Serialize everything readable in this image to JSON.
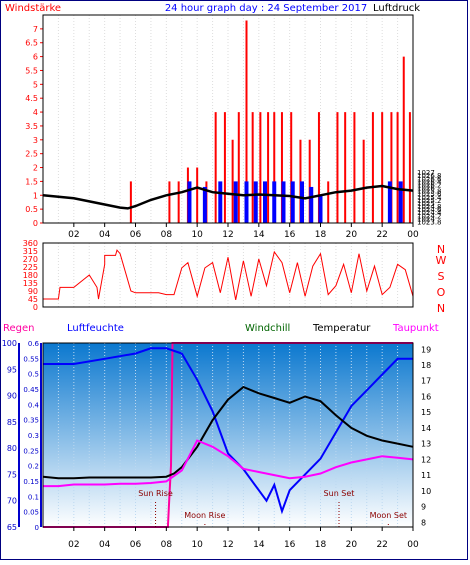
{
  "header": {
    "left_label": "Windstärke",
    "title": "24 hour graph day : 24 September 2017",
    "right_label": "Luftdruck"
  },
  "colors": {
    "wind": "#ff0000",
    "gust": "#0000ff",
    "pressure": "#000000",
    "humidity": "#0000ff",
    "dewpoint": "#ff00ff",
    "temperature": "#000000",
    "windchill": "#006400",
    "rain": "#ff00a0",
    "axis_blue": "#0000cc",
    "bg_top": "#0b78cf",
    "bg_bottom": "#ffffff"
  },
  "time_ticks": [
    "02",
    "04",
    "06",
    "08",
    "10",
    "12",
    "14",
    "16",
    "18",
    "20",
    "22",
    "00"
  ],
  "chart_data": [
    {
      "type": "line",
      "name": "wind-pressure",
      "ylim_left": [
        0,
        7.5
      ],
      "left_ticks": [
        "0",
        "0.5",
        "1",
        "1.5",
        "2",
        "2.5",
        "3",
        "3.5",
        "4",
        "4.5",
        "5",
        "5.5",
        "6",
        "6.5",
        "7"
      ],
      "ylim_right": [
        1023.7,
        1037.2
      ],
      "right_ticks": [
        "1023.8",
        "1024",
        "1024.2",
        "1024.4",
        "1024.6",
        "1024.8",
        "1025",
        "1025.2",
        "1025.4",
        "1025.6",
        "1025.8",
        "1026",
        "1026.2",
        "1026.4",
        "1026.6",
        "1026.8",
        "1027"
      ],
      "pressure": {
        "x": [
          0,
          1,
          2,
          3,
          4,
          5,
          5.5,
          6,
          7,
          8,
          9,
          10,
          11,
          12,
          13,
          14,
          15,
          16,
          17,
          18,
          19,
          20,
          21,
          22,
          23,
          24
        ],
        "values": [
          1025.5,
          1025.4,
          1025.3,
          1025.1,
          1024.9,
          1024.7,
          1024.65,
          1024.8,
          1025.2,
          1025.5,
          1025.7,
          1026.0,
          1025.7,
          1025.6,
          1025.5,
          1025.55,
          1025.5,
          1025.45,
          1025.3,
          1025.5,
          1025.7,
          1025.8,
          1026.0,
          1026.1,
          1025.9,
          1025.8
        ]
      },
      "wind_speed": {
        "x": [
          5.7,
          8.2,
          8.8,
          9.4,
          10.0,
          10.6,
          11.2,
          11.8,
          12.3,
          12.7,
          13.2,
          13.6,
          14.1,
          14.6,
          15.0,
          15.5,
          16.1,
          16.7,
          17.3,
          17.9,
          18.5,
          19.1,
          19.6,
          20.2,
          20.8,
          21.4,
          22.0,
          22.6,
          23.0,
          23.4,
          23.8
        ],
        "values": [
          1.5,
          1.5,
          1.5,
          2,
          2,
          1.5,
          4,
          4,
          3,
          4,
          7.3,
          4,
          4,
          4,
          4,
          4,
          4,
          3,
          3,
          4,
          1.5,
          4,
          4,
          4,
          3,
          4,
          4,
          4,
          4,
          6,
          4
        ]
      },
      "gust": {
        "x": [
          9.5,
          10.5,
          11.5,
          12.5,
          13.2,
          13.8,
          14.4,
          15.0,
          15.6,
          16.2,
          16.8,
          17.4,
          18.0,
          22.5,
          23.2
        ],
        "values": [
          1.5,
          1.3,
          1.5,
          1.5,
          1.5,
          1.5,
          1.5,
          1.5,
          1.5,
          1.5,
          1.5,
          1.3,
          1.0,
          1.5,
          1.5
        ]
      }
    },
    {
      "type": "line",
      "name": "wind-direction",
      "ylim": [
        0,
        360
      ],
      "left_ticks": [
        "0",
        "45",
        "90",
        "135",
        "180",
        "225",
        "270",
        "315",
        "360"
      ],
      "compass": [
        "N",
        "W",
        "S",
        "O",
        "N"
      ],
      "x": [
        0,
        1,
        1.1,
        2,
        3,
        3.5,
        3.6,
        4,
        4,
        4.7,
        4.8,
        5,
        5.7,
        6,
        6.5,
        7,
        7.5,
        8,
        8.5,
        9,
        9.4,
        10,
        10.5,
        11,
        11.5,
        12,
        12.5,
        13,
        13.5,
        14,
        14.5,
        15,
        15.5,
        16,
        16.5,
        17,
        17.5,
        18,
        18.5,
        19,
        19.5,
        20,
        20.5,
        21,
        21.5,
        22,
        22.5,
        23,
        23.5,
        24
      ],
      "values": [
        45,
        45,
        110,
        110,
        180,
        110,
        45,
        240,
        290,
        290,
        320,
        300,
        90,
        80,
        80,
        80,
        80,
        70,
        70,
        220,
        250,
        60,
        220,
        250,
        80,
        280,
        40,
        260,
        60,
        270,
        120,
        310,
        250,
        80,
        250,
        60,
        230,
        300,
        70,
        120,
        240,
        80,
        300,
        90,
        230,
        70,
        110,
        240,
        210,
        60
      ]
    },
    {
      "type": "line",
      "name": "temperature-humidity",
      "legend": [
        "Regen",
        "Luftfeuchte",
        "Windchill",
        "Temperatur",
        "Taupunkt"
      ],
      "ylim_humidity": [
        65,
        100
      ],
      "humidity_ticks": [
        "65",
        "70",
        "75",
        "80",
        "85",
        "90",
        "95",
        "100"
      ],
      "ylim_rain": [
        0,
        0.6
      ],
      "rain_ticks": [
        "0",
        "0.05",
        "0.1",
        "0.15",
        "0.2",
        "0.25",
        "0.3",
        "0.35",
        "0.4",
        "0.45",
        "0.5",
        "0.55",
        "0.6"
      ],
      "ylim_temp": [
        7.7,
        19.4
      ],
      "temp_ticks": [
        "8",
        "9",
        "10",
        "11",
        "12",
        "13",
        "14",
        "15",
        "16",
        "17",
        "18",
        "19"
      ],
      "humidity": {
        "x": [
          0,
          2,
          4,
          6,
          7,
          8,
          9,
          10,
          11,
          12,
          13,
          14,
          14.5,
          15,
          15.5,
          16,
          17,
          18,
          19,
          20,
          21,
          22,
          23,
          24
        ],
        "values": [
          96,
          96,
          97,
          98,
          99,
          99,
          98,
          93,
          87,
          79,
          76,
          72,
          70,
          73,
          68,
          72,
          75,
          78,
          83,
          88,
          91,
          94,
          97,
          97
        ]
      },
      "temperature": {
        "x": [
          0,
          1,
          2,
          3,
          4,
          5,
          6,
          7,
          8,
          8.5,
          9,
          10,
          11,
          12,
          13,
          14,
          15,
          16,
          17,
          18,
          19,
          20,
          21,
          22,
          23,
          24
        ],
        "values": [
          10.9,
          10.8,
          10.8,
          10.85,
          10.85,
          10.85,
          10.85,
          10.85,
          10.9,
          11.1,
          11.5,
          12.8,
          14.5,
          15.8,
          16.6,
          16.2,
          15.9,
          15.6,
          16.0,
          15.7,
          14.8,
          14.0,
          13.5,
          13.2,
          13.0,
          12.8
        ]
      },
      "dewpoint": {
        "x": [
          0,
          1,
          2,
          3,
          4,
          5,
          6,
          7,
          8,
          9,
          10,
          11,
          12,
          13,
          14,
          15,
          16,
          17,
          18,
          19,
          20,
          21,
          22,
          23,
          24
        ],
        "values": [
          10.3,
          10.3,
          10.4,
          10.4,
          10.4,
          10.45,
          10.45,
          10.5,
          10.6,
          11.3,
          13.2,
          12.8,
          12.2,
          11.4,
          11.2,
          11.0,
          10.8,
          10.9,
          11.1,
          11.5,
          11.8,
          12.0,
          12.2,
          12.1,
          12.0
        ]
      },
      "rain": {
        "x": [
          0,
          8.1,
          8.2,
          8.3,
          8.4,
          24
        ],
        "values": [
          0,
          0,
          0.1,
          0.2,
          0.6,
          0.6
        ]
      },
      "annotations": [
        {
          "label": "Sun Rise",
          "hour": 7.3
        },
        {
          "label": "Moon Rise",
          "hour": 10.5
        },
        {
          "label": "Sun Set",
          "hour": 19.2
        },
        {
          "label": "Moon Set",
          "hour": 22.4
        }
      ]
    }
  ]
}
